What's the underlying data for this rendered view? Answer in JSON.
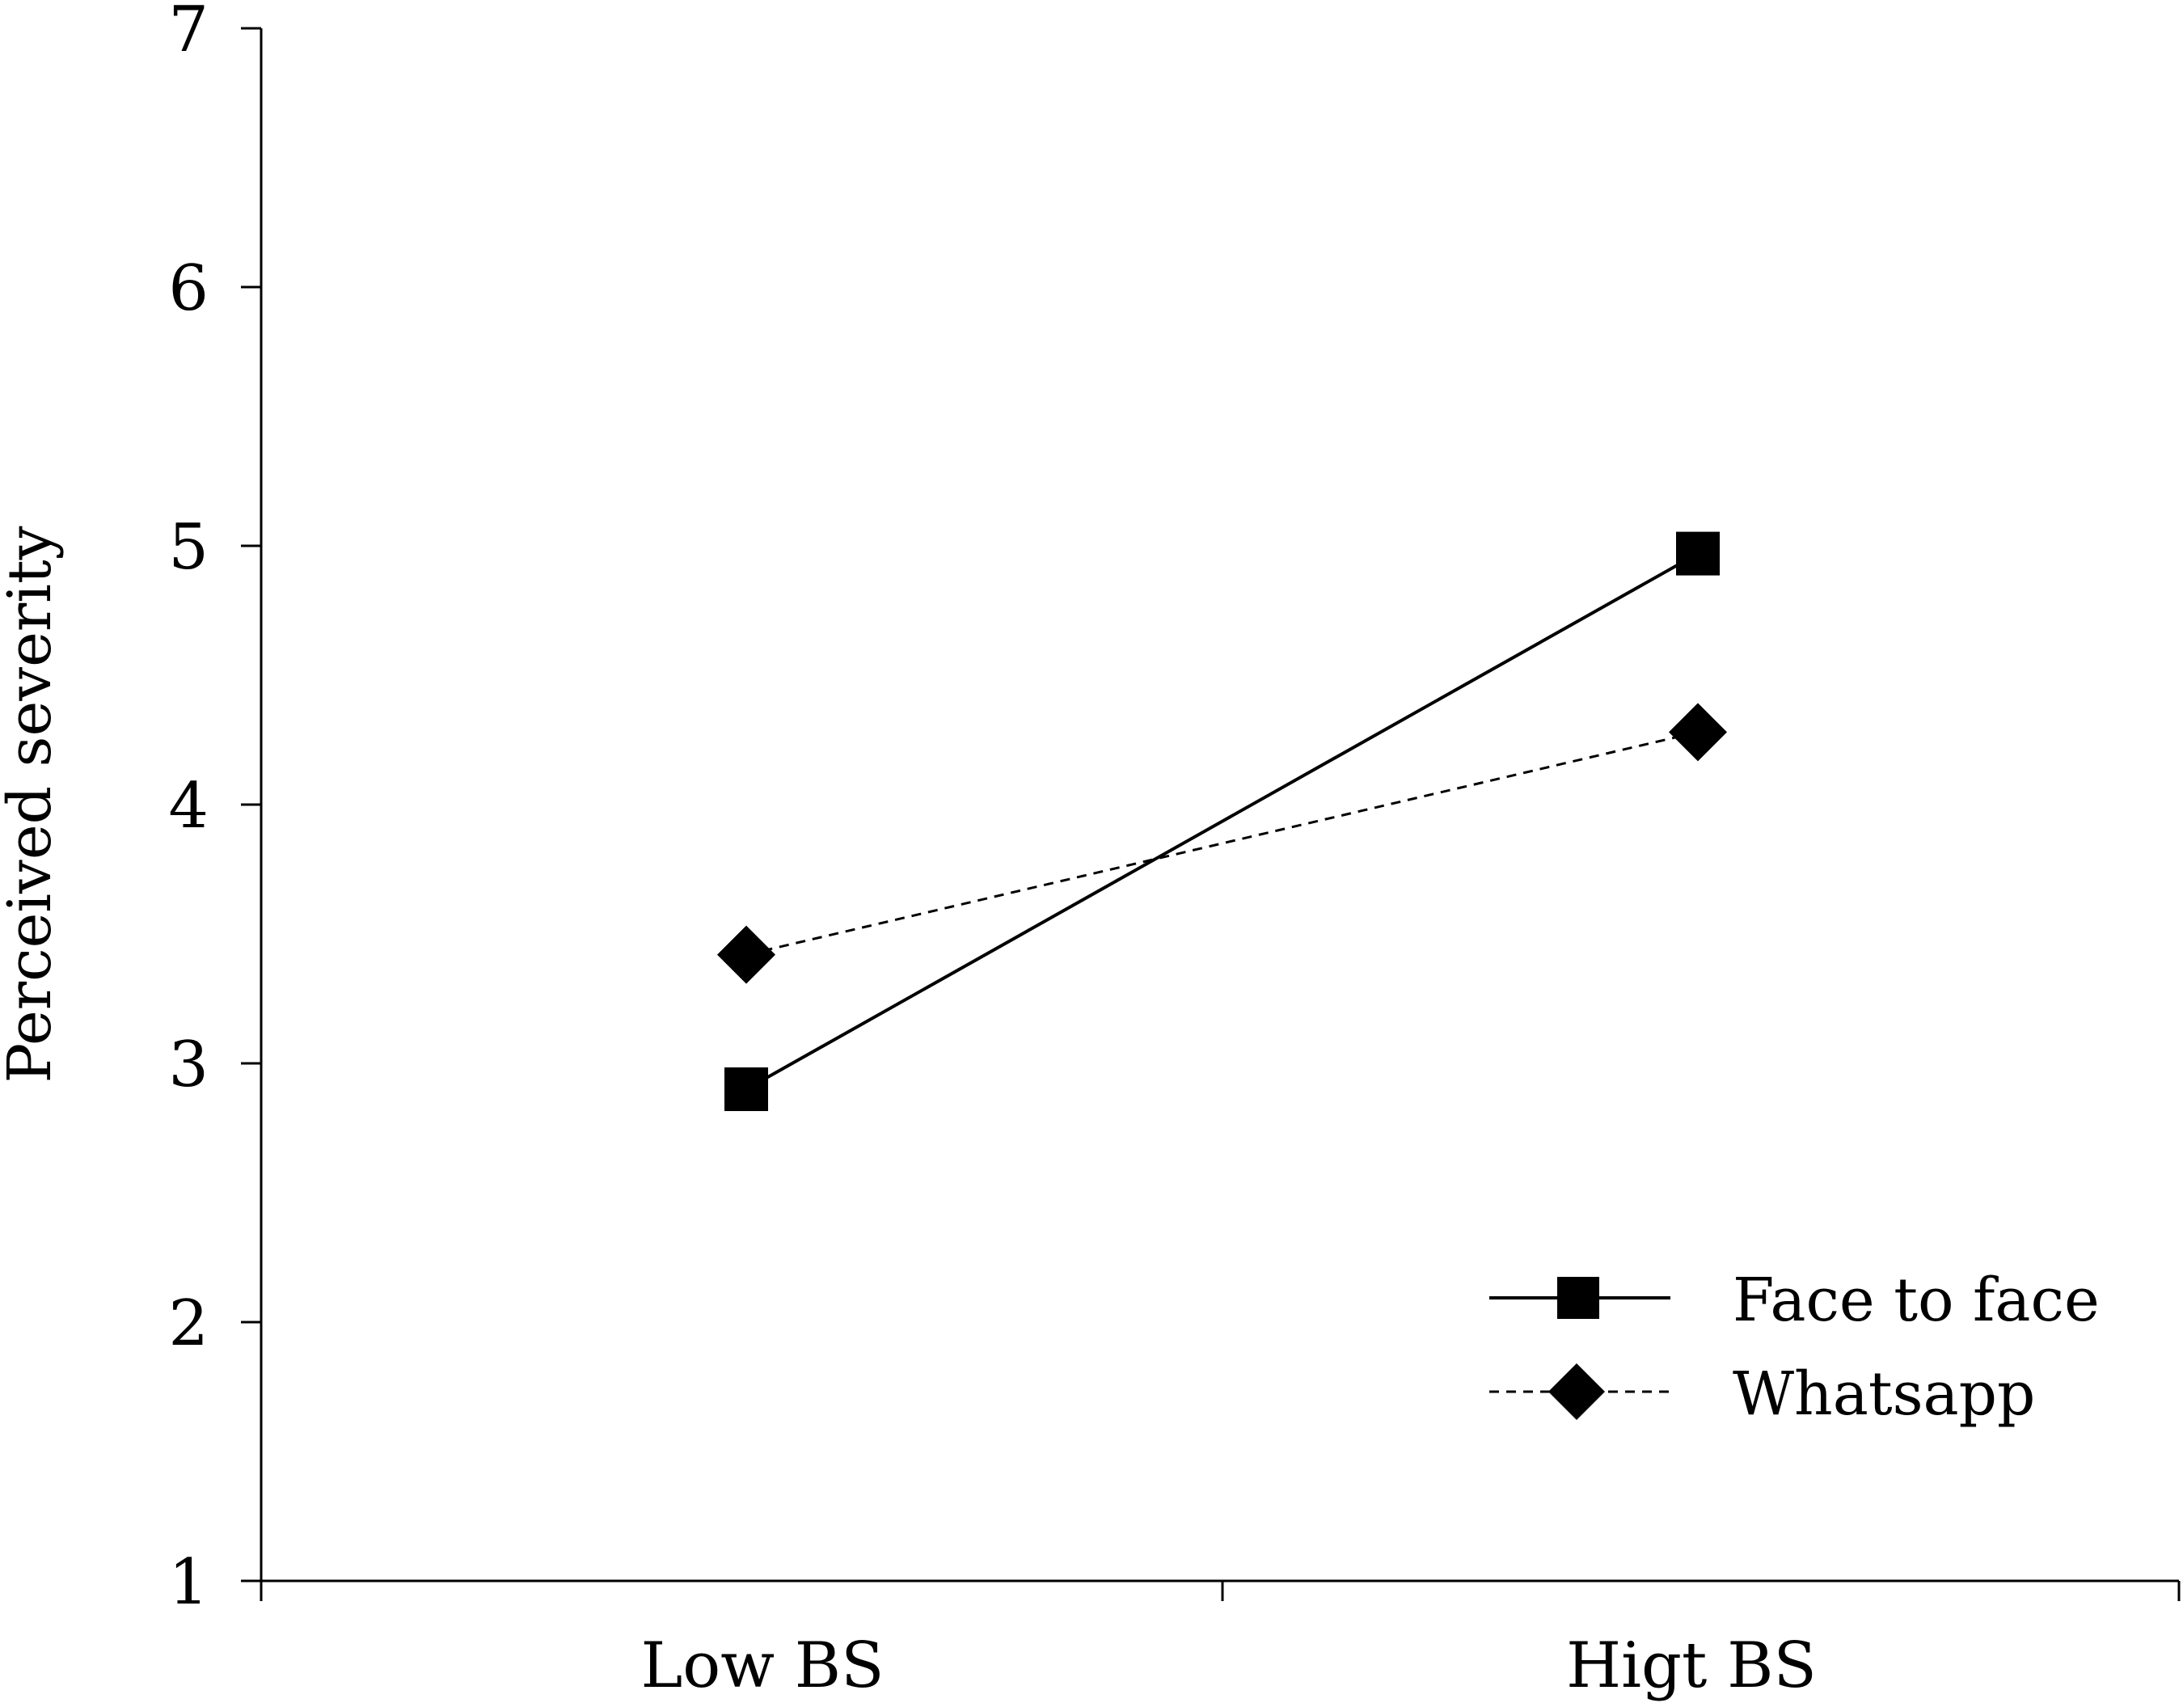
{
  "chart_data": {
    "type": "line",
    "title": "",
    "xlabel": "",
    "ylabel": "Perceived severity",
    "categories": [
      "Low BS",
      "Higt BS"
    ],
    "ylim": [
      1,
      7
    ],
    "yticks": [
      "1",
      "2",
      "3",
      "4",
      "5",
      "6",
      "7"
    ],
    "grid": false,
    "legend_position": "bottom-right",
    "series": [
      {
        "name": "Face to face",
        "marker": "square",
        "line_style": "solid",
        "values": [
          2.9,
          4.97
        ]
      },
      {
        "name": "Whatsapp",
        "marker": "diamond",
        "line_style": "dashed",
        "values": [
          3.42,
          4.28
        ]
      }
    ],
    "colors": {
      "line": "#000000",
      "background": "#ffffff"
    }
  }
}
